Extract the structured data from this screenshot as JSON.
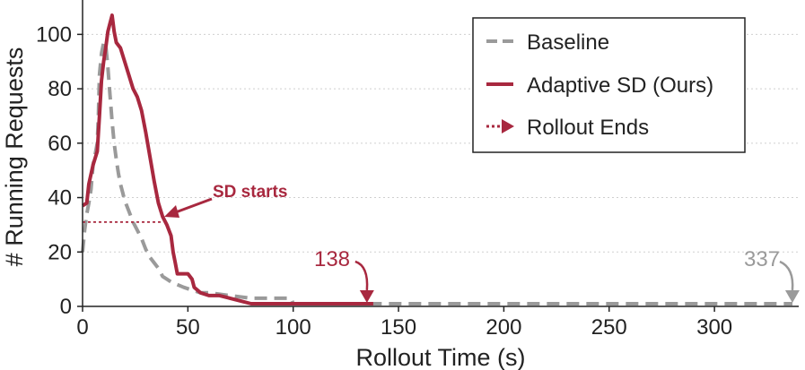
{
  "chart_data": {
    "type": "line",
    "xlabel": "Rollout Time (s)",
    "ylabel": "# Running Requests",
    "xlim": [
      0,
      340
    ],
    "ylim": [
      0,
      110
    ],
    "xticks": [
      0,
      50,
      100,
      150,
      200,
      250,
      300
    ],
    "yticks": [
      0,
      20,
      40,
      60,
      80,
      100
    ],
    "grid": "horizontal dotted",
    "legend_position": "top-right",
    "series": [
      {
        "name": "Baseline",
        "color": "#9a9a9a",
        "style": "dashed",
        "points": [
          [
            0,
            20
          ],
          [
            1,
            28
          ],
          [
            2,
            34
          ],
          [
            3,
            38
          ],
          [
            4,
            43
          ],
          [
            5,
            52
          ],
          [
            6,
            56
          ],
          [
            7,
            60
          ],
          [
            7.5,
            70
          ],
          [
            8,
            85
          ],
          [
            9,
            93
          ],
          [
            10,
            97
          ],
          [
            11,
            96
          ],
          [
            12,
            88
          ],
          [
            13,
            78
          ],
          [
            14,
            68
          ],
          [
            15,
            60
          ],
          [
            16,
            54
          ],
          [
            17,
            49
          ],
          [
            18,
            45
          ],
          [
            19,
            42
          ],
          [
            20,
            39
          ],
          [
            22,
            35
          ],
          [
            24,
            31
          ],
          [
            26,
            28
          ],
          [
            28,
            25
          ],
          [
            30,
            21
          ],
          [
            32,
            18
          ],
          [
            34,
            16
          ],
          [
            36,
            14
          ],
          [
            38,
            11
          ],
          [
            40,
            10
          ],
          [
            42,
            9
          ],
          [
            45,
            8
          ],
          [
            48,
            7
          ],
          [
            52,
            6
          ],
          [
            56,
            5
          ],
          [
            60,
            5
          ],
          [
            70,
            4
          ],
          [
            80,
            3
          ],
          [
            90,
            3
          ],
          [
            99,
            3
          ],
          [
            100,
            1
          ],
          [
            337,
            1
          ]
        ]
      },
      {
        "name": "Adaptive SD (Ours)",
        "color": "#a8283f",
        "style": "solid",
        "points": [
          [
            0,
            37
          ],
          [
            2,
            38
          ],
          [
            3,
            45
          ],
          [
            5,
            52
          ],
          [
            7,
            57
          ],
          [
            8,
            70
          ],
          [
            9,
            83
          ],
          [
            10,
            90
          ],
          [
            11,
            95
          ],
          [
            12,
            101
          ],
          [
            13,
            104
          ],
          [
            14,
            107
          ],
          [
            15,
            101
          ],
          [
            16,
            97
          ],
          [
            18,
            95
          ],
          [
            20,
            90
          ],
          [
            22,
            85
          ],
          [
            24,
            80
          ],
          [
            26,
            77
          ],
          [
            28,
            72
          ],
          [
            30,
            64
          ],
          [
            32,
            55
          ],
          [
            34,
            46
          ],
          [
            36,
            38
          ],
          [
            38,
            33
          ],
          [
            40,
            30
          ],
          [
            42,
            26
          ],
          [
            43,
            20
          ],
          [
            44,
            16
          ],
          [
            45,
            12
          ],
          [
            48,
            12
          ],
          [
            50,
            12
          ],
          [
            52,
            10
          ],
          [
            53,
            7
          ],
          [
            56,
            5
          ],
          [
            60,
            4
          ],
          [
            65,
            4
          ],
          [
            70,
            3
          ],
          [
            75,
            2
          ],
          [
            80,
            1
          ],
          [
            138,
            1
          ]
        ]
      }
    ],
    "annotations": [
      {
        "text": "SD starts",
        "y_value": 31,
        "x_from": 0,
        "x_to": 38
      },
      {
        "text": "138",
        "marker_x": 135,
        "marker_y": 1,
        "series": "Adaptive SD (Ours)"
      },
      {
        "text": "337",
        "marker_x": 337,
        "marker_y": 1,
        "series": "Baseline"
      }
    ],
    "legend": [
      {
        "label": "Baseline",
        "kind": "dashed-line",
        "color": "#9a9a9a"
      },
      {
        "label": "Adaptive SD (Ours)",
        "kind": "solid-line",
        "color": "#a8283f"
      },
      {
        "label": "Rollout Ends",
        "kind": "arrow",
        "color": "#a8283f"
      }
    ]
  }
}
